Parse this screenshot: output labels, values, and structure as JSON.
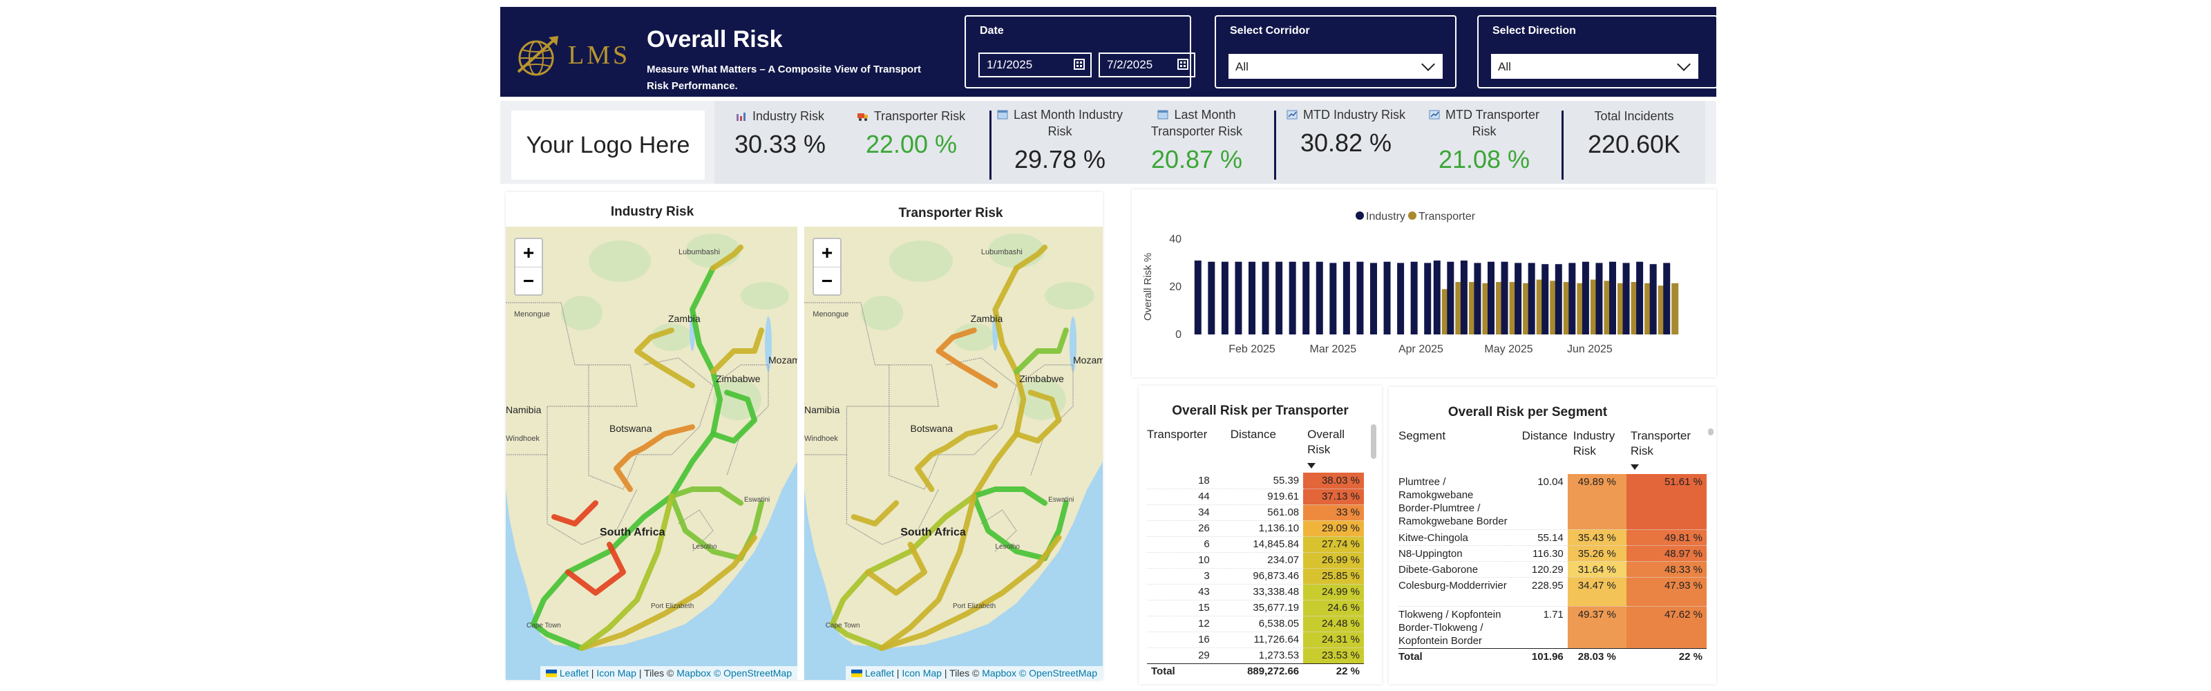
{
  "header": {
    "logo_text": "LMS",
    "title": "Overall Risk",
    "subtitle": "Measure What Matters – A Composite View of Transport Risk Performance.",
    "date_filter": {
      "label": "Date",
      "start": "1/1/2025",
      "end": "7/2/2025"
    },
    "corridor_filter": {
      "label": "Select Corridor",
      "value": "All"
    },
    "direction_filter": {
      "label": "Select Direction",
      "value": "All"
    }
  },
  "logo_placeholder": "Your Logo Here",
  "kpis": [
    {
      "label": "Industry Risk",
      "value": "30.33 %",
      "icon": "industry-icon",
      "green": false
    },
    {
      "label": "Transporter Risk",
      "value": "22.00 %",
      "icon": "truck-icon",
      "green": true
    },
    {
      "label": "Last Month Industry Risk",
      "value": "29.78 %",
      "icon": "calendar-icon",
      "green": false
    },
    {
      "label": "Last Month Transporter Risk",
      "value": "20.87 %",
      "icon": "calendar-icon",
      "green": true
    },
    {
      "label": "MTD Industry Risk",
      "value": "30.82 %",
      "icon": "chart-icon",
      "green": false
    },
    {
      "label": "MTD Transporter Risk",
      "value": "21.08 %",
      "icon": "chart-icon",
      "green": true
    },
    {
      "label": "Total Incidents",
      "value": "220.60K",
      "icon": "",
      "green": false
    }
  ],
  "maps": {
    "industry_title": "Industry Risk",
    "transporter_title": "Transporter Risk",
    "labels": [
      "Zambia",
      "Zimbabwe",
      "Mozambique",
      "Namibia",
      "Botswana",
      "Windhoek",
      "Menongue",
      "Lubumbashi",
      "Eswatini",
      "Lesotho",
      "South Africa",
      "Cape Town",
      "Port Elizabeth"
    ],
    "attribution": {
      "leaflet": "Leaflet",
      "iconmap": "Icon Map",
      "tiles": "Tiles ©",
      "mapbox": "Mapbox",
      "osm": "© OpenStreetMap"
    },
    "zoom_in": "+",
    "zoom_out": "−"
  },
  "colors": {
    "navy": "#11164a",
    "gold": "#b8952e",
    "industry_series": "#11164a",
    "transporter_series": "#a8892e",
    "risk_green": "#3aa635",
    "route_low": "#49c236",
    "route_mid": "#c9b22a",
    "route_high": "#e3421e"
  },
  "chart_data": {
    "type": "bar",
    "ylabel": "Overall Risk %",
    "xlabel": "",
    "ylim": [
      0,
      40
    ],
    "yticks": [
      0,
      20,
      40
    ],
    "xtick_labels": [
      "Feb 2025",
      "Mar 2025",
      "Apr 2025",
      "May 2025",
      "Jun 2025"
    ],
    "legend": "top-center",
    "series": [
      {
        "name": "Industry",
        "values": [
          31,
          30.5,
          30.5,
          30.5,
          30.5,
          30.5,
          30.5,
          30.5,
          30.5,
          30.5,
          30,
          30.5,
          30.5,
          30,
          30.5,
          30,
          30.5,
          30,
          31,
          30.5,
          31,
          30,
          30.5,
          30.5,
          30,
          30,
          29.5,
          29.5,
          30,
          30.5,
          30,
          30.5,
          30,
          30.5,
          29.5,
          30
        ]
      },
      {
        "name": "Transporter",
        "values": [
          null,
          null,
          null,
          null,
          null,
          null,
          null,
          null,
          null,
          null,
          null,
          null,
          null,
          null,
          null,
          null,
          null,
          null,
          19,
          22,
          22,
          21.5,
          22,
          22,
          21.5,
          23,
          22.5,
          22,
          21.5,
          23,
          22.5,
          21.5,
          22,
          21.5,
          20.5,
          21.5
        ]
      }
    ]
  },
  "transporter_table": {
    "title": "Overall Risk per Transporter",
    "columns": [
      "Transporter",
      "Distance",
      "Overall Risk"
    ],
    "rows": [
      {
        "transporter": "18",
        "distance": "55.39",
        "risk": "38.03 %",
        "risk_value": 38.03
      },
      {
        "transporter": "44",
        "distance": "919.61",
        "risk": "37.13 %",
        "risk_value": 37.13
      },
      {
        "transporter": "34",
        "distance": "561.08",
        "risk": "33 %",
        "risk_value": 33
      },
      {
        "transporter": "26",
        "distance": "1,136.10",
        "risk": "29.09 %",
        "risk_value": 29.09
      },
      {
        "transporter": "6",
        "distance": "14,845.84",
        "risk": "27.74 %",
        "risk_value": 27.74
      },
      {
        "transporter": "10",
        "distance": "234.07",
        "risk": "26.99 %",
        "risk_value": 26.99
      },
      {
        "transporter": "3",
        "distance": "96,873.46",
        "risk": "25.85 %",
        "risk_value": 25.85
      },
      {
        "transporter": "43",
        "distance": "33,338.48",
        "risk": "24.99 %",
        "risk_value": 24.99
      },
      {
        "transporter": "15",
        "distance": "35,677.19",
        "risk": "24.6 %",
        "risk_value": 24.6
      },
      {
        "transporter": "12",
        "distance": "6,538.05",
        "risk": "24.48 %",
        "risk_value": 24.48
      },
      {
        "transporter": "16",
        "distance": "11,726.64",
        "risk": "24.31 %",
        "risk_value": 24.31
      },
      {
        "transporter": "29",
        "distance": "1,273.53",
        "risk": "23.53 %",
        "risk_value": 23.53
      }
    ],
    "total": {
      "label": "Total",
      "distance": "889,272.66",
      "risk": "22 %"
    }
  },
  "segment_table": {
    "title": "Overall Risk per Segment",
    "columns": [
      "Segment",
      "Distance",
      "Industry Risk",
      "Transporter Risk"
    ],
    "rows": [
      {
        "segment": "Plumtree / Ramokgwebane Border-Plumtree / Ramokgwebane Border",
        "distance": "10.04",
        "industry": "49.89 %",
        "transporter": "51.61 %",
        "lines": 4,
        "industry_value": 49.89,
        "transporter_value": 51.61
      },
      {
        "segment": "Kitwe-Chingola",
        "distance": "55.14",
        "industry": "35.43 %",
        "transporter": "49.81 %",
        "lines": 1,
        "industry_value": 35.43,
        "transporter_value": 49.81
      },
      {
        "segment": "N8-Uppington",
        "distance": "116.30",
        "industry": "35.26 %",
        "transporter": "48.97 %",
        "lines": 1,
        "industry_value": 35.26,
        "transporter_value": 48.97
      },
      {
        "segment": "Dibete-Gaborone",
        "distance": "120.29",
        "industry": "31.64 %",
        "transporter": "48.33 %",
        "lines": 1,
        "industry_value": 31.64,
        "transporter_value": 48.33
      },
      {
        "segment": "Colesburg-Modderrivier",
        "distance": "228.95",
        "industry": "34.47 %",
        "transporter": "47.93 %",
        "lines": 2,
        "industry_value": 34.47,
        "transporter_value": 47.93
      },
      {
        "segment": "Tlokweng / Kopfontein Border-Tlokweng / Kopfontein Border",
        "distance": "1.71",
        "industry": "49.37 %",
        "transporter": "47.62 %",
        "lines": 3,
        "industry_value": 49.37,
        "transporter_value": 47.62
      }
    ],
    "total": {
      "label": "Total",
      "distance": "101.96",
      "industry": "28.03 %",
      "transporter": "22 %"
    }
  }
}
